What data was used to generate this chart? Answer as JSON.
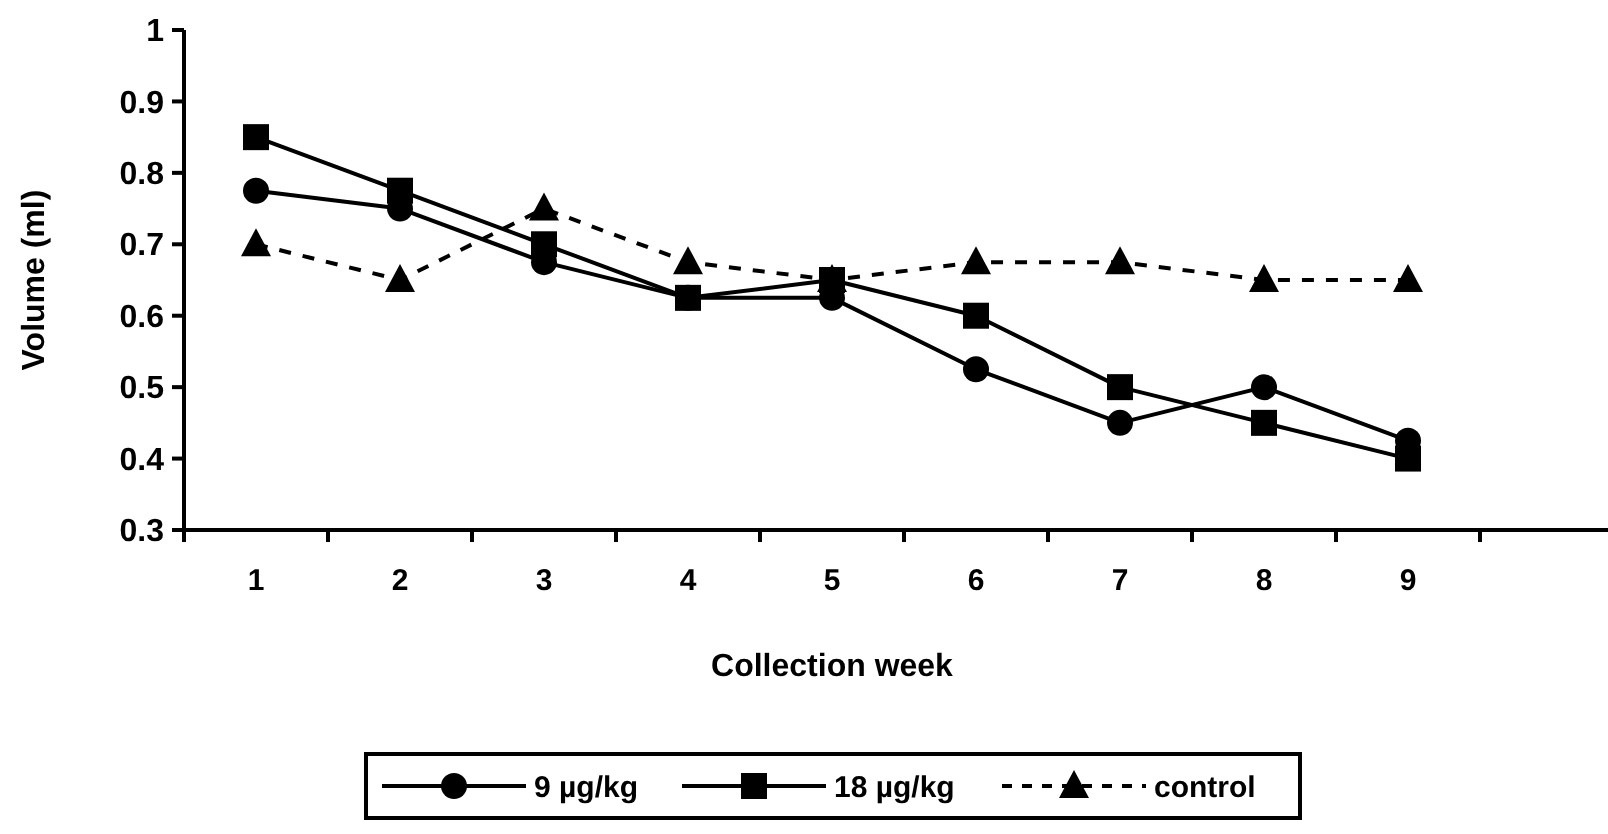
{
  "chart_data": {
    "type": "line",
    "xlabel": "Collection week",
    "ylabel": "Volume (ml)",
    "categories": [
      "1",
      "2",
      "3",
      "4",
      "5",
      "6",
      "7",
      "8",
      "9",
      null
    ],
    "ylim": [
      0.3,
      1
    ],
    "yticks": [
      0.3,
      0.4,
      0.5,
      0.6,
      0.7,
      0.8,
      0.9,
      1
    ],
    "grid": false,
    "legend": "bottom",
    "series": [
      {
        "name": "9 µg/kg",
        "color": "#000000",
        "marker": "circle",
        "line_style": "solid",
        "values": [
          0.775,
          0.75,
          0.675,
          0.625,
          0.625,
          0.525,
          0.45,
          0.5,
          0.425,
          null
        ]
      },
      {
        "name": "18 µg/kg",
        "color": "#000000",
        "marker": "square",
        "line_style": "solid",
        "values": [
          0.85,
          0.775,
          0.7,
          0.625,
          0.65,
          0.6,
          0.5,
          0.45,
          0.4,
          null
        ]
      },
      {
        "name": "control",
        "color": "#000000",
        "marker": "triangle",
        "line_style": "dashed",
        "values": [
          0.7,
          0.65,
          0.75,
          0.675,
          0.65,
          0.675,
          0.675,
          0.65,
          0.65,
          null
        ]
      }
    ]
  }
}
